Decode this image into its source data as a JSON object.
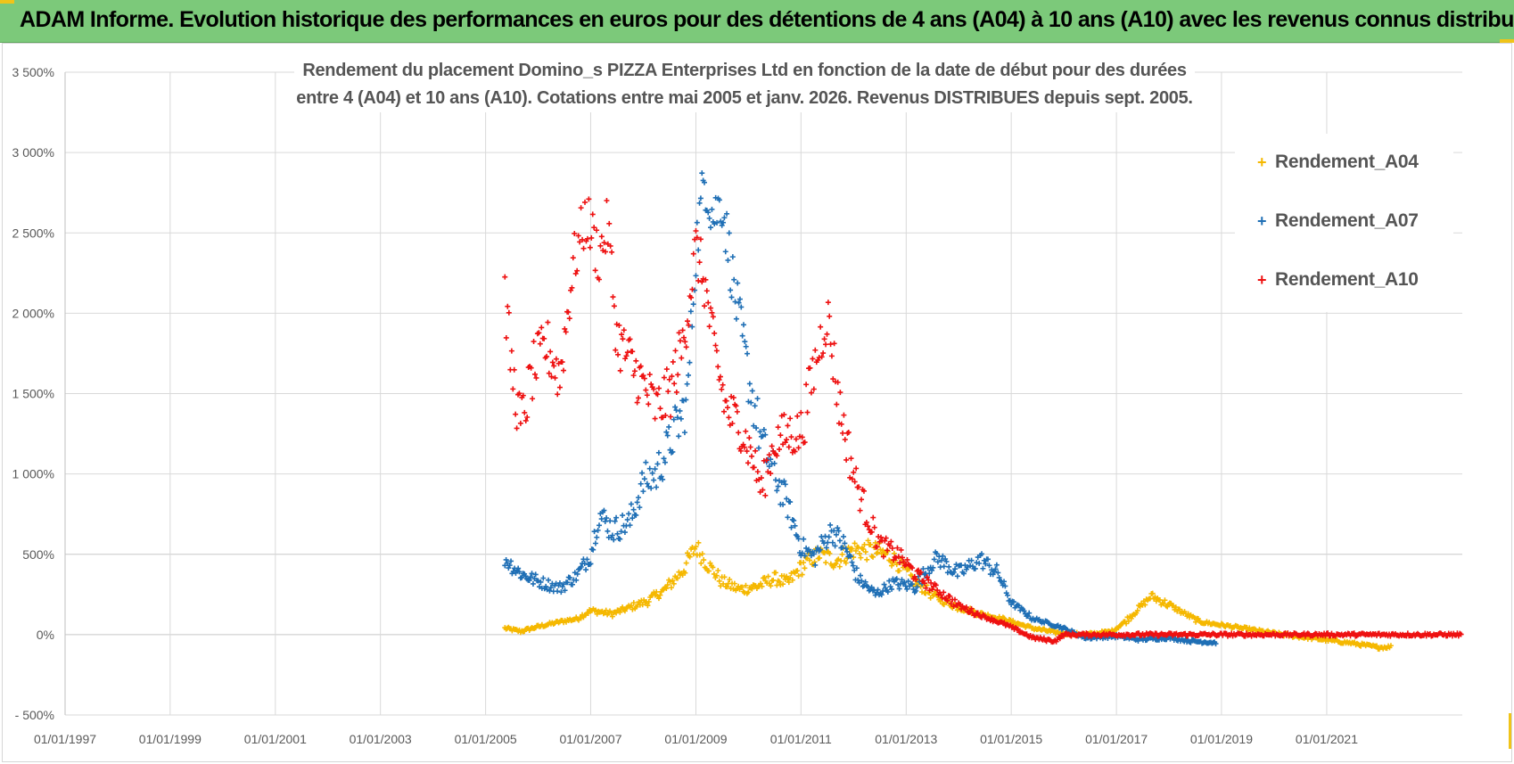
{
  "header": {
    "title": "ADAM Informe. Evolution historique des performances en euros pour des détentions de 4 ans (A04) à 10 ans (A10) avec les revenus connus distribués"
  },
  "colors": {
    "banner": "#7cc97a",
    "accent": "#f0c419",
    "A04": "#f5b800",
    "A07": "#1f6fb5",
    "A10": "#ee1111",
    "grid": "#d9d9d9",
    "axis_text": "#595959"
  },
  "chart_data": {
    "type": "scatter",
    "title_lines": [
      "Rendement du placement Domino_s PIZZA Enterprises Ltd en fonction de la date de début pour des durées",
      "entre 4 (A04) et 10 ans (A10).  Cotations entre mai 2005 et janv. 2026. Revenus DISTRIBUES depuis sept. 2005."
    ],
    "x_ticks": [
      "01/01/1997",
      "01/01/1999",
      "01/01/2001",
      "01/01/2003",
      "01/01/2005",
      "01/01/2007",
      "01/01/2009",
      "01/01/2011",
      "01/01/2013",
      "01/01/2015",
      "01/01/2017",
      "01/01/2019",
      "01/01/2021"
    ],
    "xlim": [
      "1997-01-01",
      "2023-08-01"
    ],
    "y_ticks": [
      "- 500%",
      "0%",
      "500%",
      "1 000%",
      "1 500%",
      "2 000%",
      "2 500%",
      "3 000%",
      "3 500%"
    ],
    "ylim": [
      -500,
      3500
    ],
    "grid": true,
    "legend_position": "top-right",
    "marker": "+",
    "series": [
      {
        "name": "Rendement_A04",
        "color": "#f5b800",
        "points": [
          [
            "2005-05-15",
            40
          ],
          [
            "2005-09-01",
            20
          ],
          [
            "2006-01-01",
            50
          ],
          [
            "2006-06-01",
            80
          ],
          [
            "2006-10-01",
            100
          ],
          [
            "2007-01-01",
            150
          ],
          [
            "2007-06-01",
            130
          ],
          [
            "2007-10-01",
            170
          ],
          [
            "2008-02-01",
            210
          ],
          [
            "2008-06-01",
            280
          ],
          [
            "2008-10-01",
            400
          ],
          [
            "2009-01-01",
            550
          ],
          [
            "2009-04-01",
            430
          ],
          [
            "2009-07-01",
            330
          ],
          [
            "2009-11-01",
            280
          ],
          [
            "2010-03-01",
            300
          ],
          [
            "2010-07-01",
            350
          ],
          [
            "2010-10-01",
            320
          ],
          [
            "2011-01-01",
            420
          ],
          [
            "2011-05-01",
            500
          ],
          [
            "2011-09-01",
            460
          ],
          [
            "2012-01-01",
            530
          ],
          [
            "2012-06-01",
            520
          ],
          [
            "2012-10-01",
            480
          ],
          [
            "2013-03-01",
            330
          ],
          [
            "2013-08-01",
            230
          ],
          [
            "2014-01-01",
            170
          ],
          [
            "2014-06-01",
            130
          ],
          [
            "2014-12-01",
            90
          ],
          [
            "2015-06-01",
            40
          ],
          [
            "2015-12-01",
            10
          ],
          [
            "2016-06-01",
            0
          ],
          [
            "2016-12-01",
            20
          ],
          [
            "2017-03-01",
            80
          ],
          [
            "2017-09-01",
            240
          ],
          [
            "2018-02-01",
            170
          ],
          [
            "2018-08-01",
            80
          ],
          [
            "2019-01-01",
            60
          ],
          [
            "2019-08-01",
            30
          ],
          [
            "2020-03-01",
            0
          ],
          [
            "2020-09-01",
            -20
          ],
          [
            "2021-06-01",
            -50
          ],
          [
            "2022-01-01",
            -80
          ],
          [
            "2022-04-01",
            -75
          ]
        ]
      },
      {
        "name": "Rendement_A07",
        "color": "#1f6fb5",
        "points": [
          [
            "2005-05-15",
            470
          ],
          [
            "2005-09-01",
            380
          ],
          [
            "2006-01-01",
            330
          ],
          [
            "2006-06-01",
            290
          ],
          [
            "2006-10-01",
            370
          ],
          [
            "2007-01-01",
            500
          ],
          [
            "2007-03-01",
            750
          ],
          [
            "2007-06-01",
            650
          ],
          [
            "2007-10-01",
            700
          ],
          [
            "2008-01-01",
            950
          ],
          [
            "2008-04-01",
            1000
          ],
          [
            "2008-08-01",
            1250
          ],
          [
            "2008-11-01",
            1450
          ],
          [
            "2009-01-01",
            2400
          ],
          [
            "2009-03-01",
            2850
          ],
          [
            "2009-05-01",
            2600
          ],
          [
            "2009-07-01",
            2700
          ],
          [
            "2009-10-01",
            2100
          ],
          [
            "2010-01-01",
            1600
          ],
          [
            "2010-04-01",
            1200
          ],
          [
            "2010-07-01",
            1000
          ],
          [
            "2010-10-01",
            800
          ],
          [
            "2011-01-01",
            550
          ],
          [
            "2011-04-01",
            480
          ],
          [
            "2011-08-01",
            650
          ],
          [
            "2011-11-01",
            550
          ],
          [
            "2012-02-01",
            350
          ],
          [
            "2012-06-01",
            250
          ],
          [
            "2012-10-01",
            320
          ],
          [
            "2013-03-01",
            300
          ],
          [
            "2013-08-01",
            480
          ],
          [
            "2014-01-01",
            380
          ],
          [
            "2014-06-01",
            470
          ],
          [
            "2014-10-01",
            380
          ],
          [
            "2015-01-01",
            200
          ],
          [
            "2015-06-01",
            100
          ],
          [
            "2015-12-01",
            50
          ],
          [
            "2016-06-01",
            -20
          ],
          [
            "2017-01-01",
            -10
          ],
          [
            "2017-06-01",
            -30
          ],
          [
            "2018-01-01",
            -20
          ],
          [
            "2018-06-01",
            -40
          ],
          [
            "2018-12-01",
            -50
          ]
        ]
      },
      {
        "name": "Rendement_A10",
        "color": "#ee1111",
        "points": [
          [
            "2005-05-15",
            2100
          ],
          [
            "2005-07-01",
            1650
          ],
          [
            "2005-09-01",
            1300
          ],
          [
            "2005-12-01",
            1650
          ],
          [
            "2006-03-01",
            1800
          ],
          [
            "2006-06-01",
            1600
          ],
          [
            "2006-09-01",
            2300
          ],
          [
            "2006-12-01",
            2600
          ],
          [
            "2007-03-01",
            2350
          ],
          [
            "2007-05-01",
            2550
          ],
          [
            "2007-07-01",
            1850
          ],
          [
            "2007-10-01",
            1700
          ],
          [
            "2008-01-01",
            1550
          ],
          [
            "2008-04-01",
            1400
          ],
          [
            "2008-07-01",
            1500
          ],
          [
            "2008-10-01",
            1800
          ],
          [
            "2009-01-01",
            2400
          ],
          [
            "2009-03-01",
            2200
          ],
          [
            "2009-05-01",
            1800
          ],
          [
            "2009-08-01",
            1400
          ],
          [
            "2009-11-01",
            1300
          ],
          [
            "2010-02-01",
            1100
          ],
          [
            "2010-04-01",
            900
          ],
          [
            "2010-07-01",
            1200
          ],
          [
            "2010-10-01",
            1250
          ],
          [
            "2011-01-01",
            1250
          ],
          [
            "2011-04-01",
            1650
          ],
          [
            "2011-07-01",
            2000
          ],
          [
            "2011-10-01",
            1400
          ],
          [
            "2012-01-01",
            1000
          ],
          [
            "2012-04-01",
            750
          ],
          [
            "2012-07-01",
            560
          ],
          [
            "2012-11-01",
            500
          ],
          [
            "2013-03-01",
            380
          ],
          [
            "2013-07-01",
            300
          ],
          [
            "2014-01-01",
            180
          ],
          [
            "2014-06-01",
            120
          ],
          [
            "2014-12-01",
            60
          ],
          [
            "2015-06-01",
            -20
          ],
          [
            "2015-11-01",
            -40
          ],
          [
            "2016-01-01",
            0
          ],
          [
            "2018-01-01",
            0
          ],
          [
            "2020-01-01",
            0
          ],
          [
            "2022-01-01",
            0
          ],
          [
            "2023-08-01",
            0
          ]
        ]
      }
    ]
  }
}
